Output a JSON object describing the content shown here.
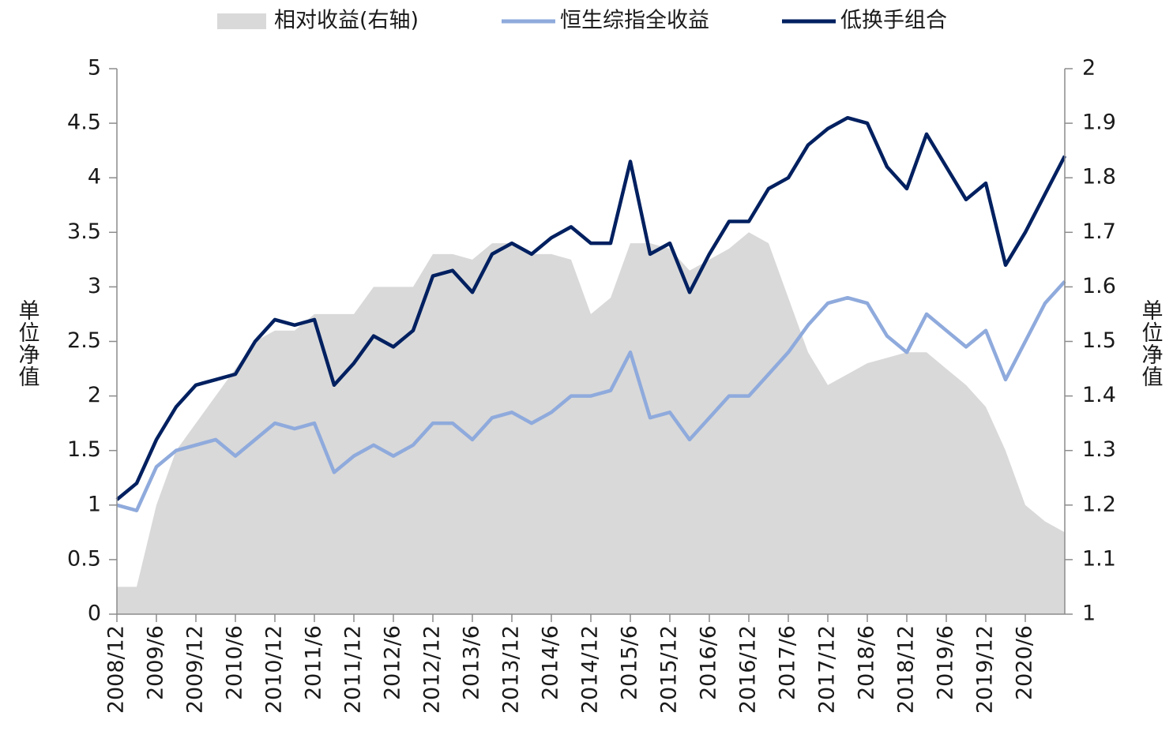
{
  "chart_data": {
    "type": "line",
    "legend": "top",
    "y_label": "单位净值",
    "y2_label": "单位净值",
    "categories": [
      "2008/12",
      null,
      "2009/6",
      null,
      "2009/12",
      null,
      "2010/6",
      null,
      "2010/12",
      null,
      "2011/6",
      null,
      "2011/12",
      null,
      "2012/6",
      null,
      "2012/12",
      null,
      "2013/6",
      null,
      "2013/12",
      null,
      "2014/6",
      null,
      "2014/12",
      null,
      "2015/6",
      null,
      "2015/12",
      null,
      "2016/6",
      null,
      "2016/12",
      null,
      "2017/6",
      null,
      "2017/12",
      null,
      "2018/6",
      null,
      "2018/12",
      null,
      "2019/6",
      null,
      "2019/12",
      null,
      "2020/6",
      null,
      null
    ],
    "series": [
      {
        "name": "相对收益(右轴)",
        "type": "area",
        "axis": "y2",
        "color": "#d9d9d9",
        "values": [
          1.05,
          1.05,
          1.2,
          1.3,
          1.35,
          1.4,
          1.45,
          1.5,
          1.52,
          1.52,
          1.55,
          1.55,
          1.55,
          1.6,
          1.6,
          1.6,
          1.66,
          1.66,
          1.65,
          1.68,
          1.68,
          1.66,
          1.66,
          1.65,
          1.55,
          1.58,
          1.68,
          1.68,
          1.67,
          1.63,
          1.65,
          1.67,
          1.7,
          1.68,
          1.58,
          1.48,
          1.42,
          1.44,
          1.46,
          1.47,
          1.48,
          1.48,
          1.45,
          1.42,
          1.38,
          1.3,
          1.2,
          1.17,
          1.15
        ]
      },
      {
        "name": "恒生综指全收益",
        "color": "#8faadc",
        "values": [
          1.0,
          0.95,
          1.35,
          1.5,
          1.55,
          1.6,
          1.45,
          1.6,
          1.75,
          1.7,
          1.75,
          1.3,
          1.45,
          1.55,
          1.45,
          1.55,
          1.75,
          1.75,
          1.6,
          1.8,
          1.85,
          1.75,
          1.85,
          2.0,
          2.0,
          2.05,
          2.4,
          1.8,
          1.85,
          1.6,
          1.8,
          2.0,
          2.0,
          2.2,
          2.4,
          2.65,
          2.85,
          2.9,
          2.85,
          2.55,
          2.4,
          2.75,
          2.6,
          2.45,
          2.6,
          2.15,
          2.5,
          2.85,
          3.05
        ]
      },
      {
        "name": "低换手组合",
        "color": "#002060",
        "values": [
          1.05,
          1.2,
          1.6,
          1.9,
          2.1,
          2.15,
          2.2,
          2.5,
          2.7,
          2.65,
          2.7,
          2.1,
          2.3,
          2.55,
          2.45,
          2.6,
          3.1,
          3.15,
          2.95,
          3.3,
          3.4,
          3.3,
          3.45,
          3.55,
          3.4,
          3.4,
          4.15,
          3.3,
          3.4,
          2.95,
          3.3,
          3.6,
          3.6,
          3.9,
          4.0,
          4.3,
          4.45,
          4.55,
          4.5,
          4.1,
          3.9,
          4.4,
          4.1,
          3.8,
          3.95,
          3.2,
          3.5,
          3.85,
          4.2
        ]
      }
    ],
    "ylim": [
      0,
      5
    ],
    "yticks": [
      0,
      0.5,
      1,
      1.5,
      2,
      2.5,
      3,
      3.5,
      4,
      4.5,
      5
    ],
    "y2lim": [
      1,
      2
    ],
    "y2ticks": [
      1,
      1.1,
      1.2,
      1.3,
      1.4,
      1.5,
      1.6,
      1.7,
      1.8,
      1.9,
      2
    ]
  }
}
